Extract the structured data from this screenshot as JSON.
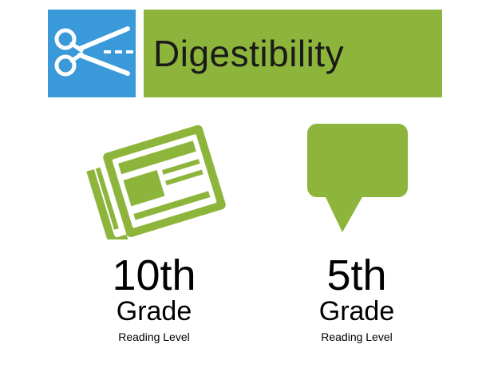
{
  "header": {
    "title": "Digestibility",
    "icon": "scissors-icon",
    "icon_bg": "#3a9ad9",
    "title_bg": "#8db53c"
  },
  "items": [
    {
      "icon": "newspaper-icon",
      "level": "10th",
      "unit": "Grade",
      "caption": "Reading Level"
    },
    {
      "icon": "speech-bubble-icon",
      "level": "5th",
      "unit": "Grade",
      "caption": "Reading Level"
    }
  ],
  "colors": {
    "green": "#8db53c",
    "blue": "#3a9ad9"
  }
}
